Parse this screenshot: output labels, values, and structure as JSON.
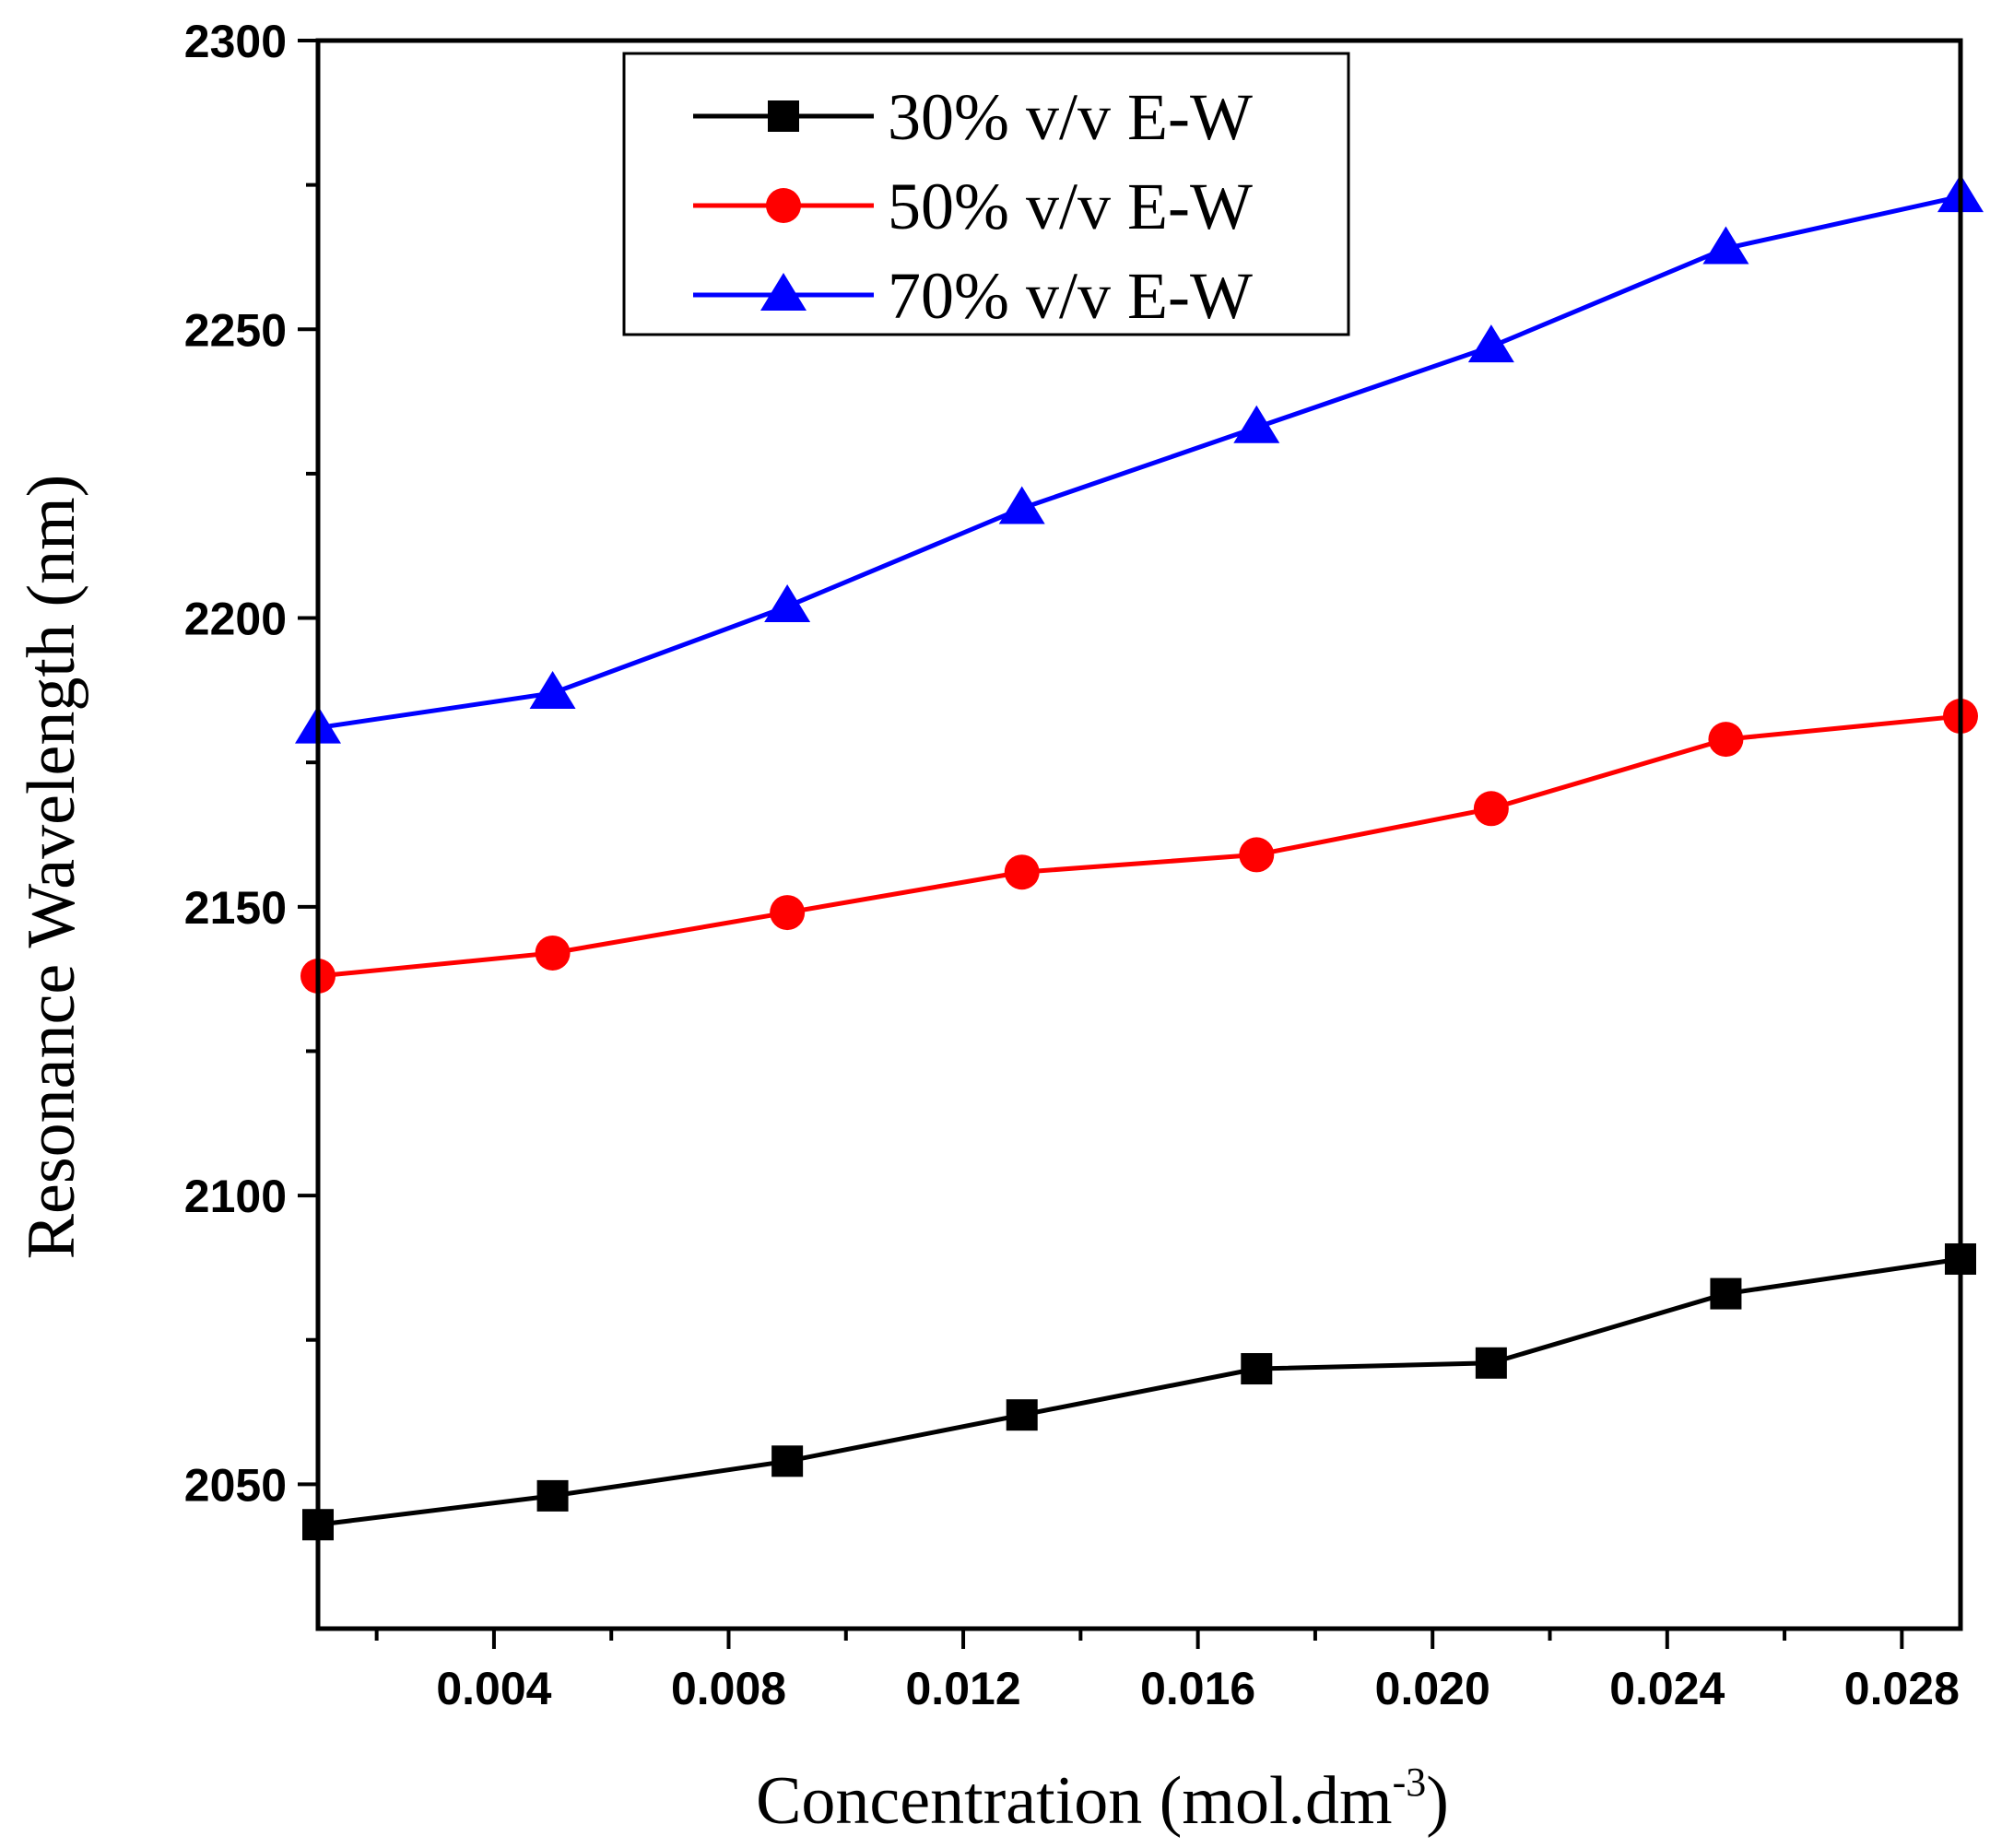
{
  "chart_data": {
    "type": "line",
    "title": "",
    "xlabel": "Concentration (mol.dm",
    "xlabel_superscript": "-3",
    "xlabel_close": ")",
    "ylabel": "Resonance Wavelength (nm)",
    "xlim": [
      0.001,
      0.029
    ],
    "ylim": [
      2025,
      2300
    ],
    "x_ticks": [
      0.004,
      0.008,
      0.012,
      0.016,
      0.02,
      0.024,
      0.028
    ],
    "x_tick_labels": [
      "0.004",
      "0.008",
      "0.012",
      "0.016",
      "0.020",
      "0.024",
      "0.028"
    ],
    "y_ticks": [
      2050,
      2100,
      2150,
      2200,
      2250,
      2300
    ],
    "y_tick_labels": [
      "2050",
      "2100",
      "2150",
      "2200",
      "2250",
      "2300"
    ],
    "x_minor_ticks": [
      0.002,
      0.006,
      0.01,
      0.014,
      0.018,
      0.022,
      0.026
    ],
    "y_minor_ticks": [
      2075,
      2125,
      2175,
      2225,
      2275
    ],
    "grid": false,
    "legend_position": "top-center",
    "x": [
      0.001,
      0.005,
      0.009,
      0.013,
      0.017,
      0.021,
      0.025,
      0.029
    ],
    "series": [
      {
        "name": "30% v/v E-W",
        "color": "#000000",
        "marker": "square",
        "values": [
          2043,
          2048,
          2054,
          2062,
          2070,
          2071,
          2083,
          2089
        ]
      },
      {
        "name": "50% v/v E-W",
        "color": "#ff0000",
        "marker": "circle",
        "values": [
          2138,
          2142,
          2149,
          2156,
          2159,
          2167,
          2179,
          2183
        ]
      },
      {
        "name": "70% v/v E-W",
        "color": "#0000ff",
        "marker": "triangle",
        "values": [
          2181,
          2187,
          2202,
          2219,
          2233,
          2247,
          2264,
          2273
        ]
      }
    ]
  }
}
